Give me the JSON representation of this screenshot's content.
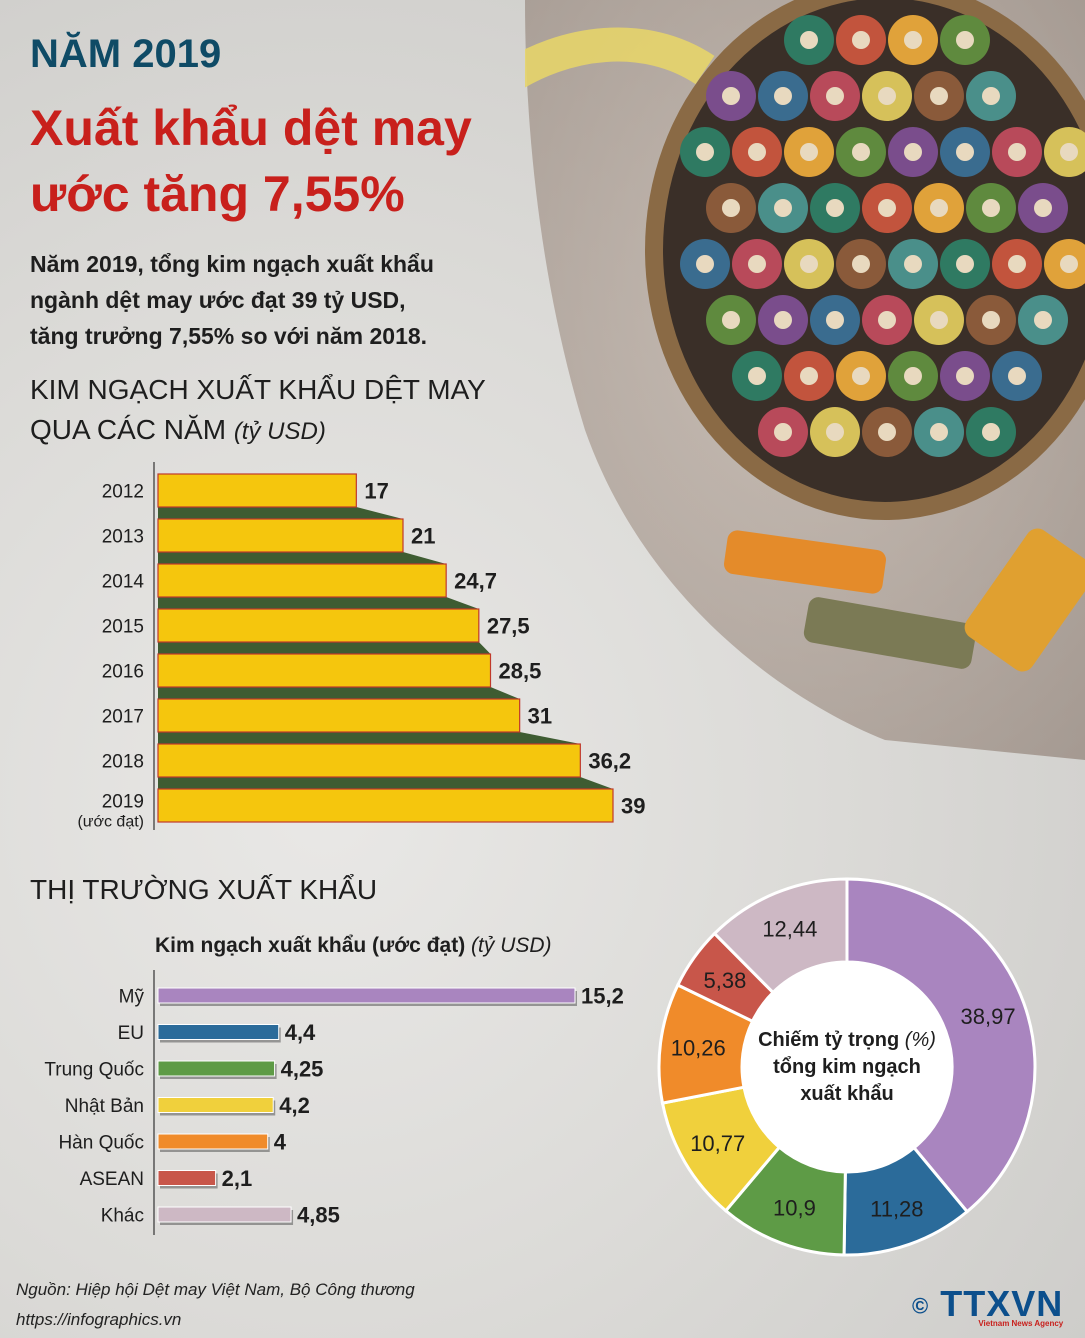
{
  "header": {
    "year_title": "NĂM 2019",
    "title_line1": "Xuất khẩu dệt may",
    "title_line2": "ước tăng 7,55%",
    "intro_line1": "Năm 2019, tổng kim ngạch xuất khẩu",
    "intro_line2": "ngành dệt may ước đạt 39 tỷ USD,",
    "intro_line3": "tăng trưởng 7,55% so với năm 2018."
  },
  "section1": {
    "title_line1": "KIM NGẠCH XUẤT KHẨU DỆT MAY",
    "title_line2": "QUA CÁC NĂM",
    "unit": "(tỷ USD)"
  },
  "section2": {
    "title": "THỊ TRƯỜNG XUẤT KHẨU",
    "subtitle": "Kim ngạch xuất khẩu (ước đạt)",
    "unit": "(tỷ USD)"
  },
  "donut_center": {
    "line1": "Chiếm tỷ trọng",
    "unit": "(%)",
    "line2": "tổng kim ngạch",
    "line3": "xuất khẩu"
  },
  "footer": {
    "source": "Nguồn: Hiệp hội Dệt may Việt Nam, Bộ Công thương",
    "url": "https://infographics.vn",
    "logo": "TTXVN",
    "logo_sub": "Vietnam News Agency",
    "copyright": "©"
  },
  "colors": {
    "title_blue": "#0f4b66",
    "title_red": "#c8201c",
    "bar_yellow": "#f5c60d",
    "bar_shadow": "#3e5c32",
    "bar_border": "#c0392b"
  },
  "chart_data": [
    {
      "type": "bar",
      "orientation": "horizontal",
      "categories": [
        "2012",
        "2013",
        "2014",
        "2015",
        "2016",
        "2017",
        "2018",
        "2019"
      ],
      "category_notes": [
        "",
        "",
        "",
        "",
        "",
        "",
        "",
        "(ước đạt)"
      ],
      "values": [
        17,
        21,
        24.7,
        27.5,
        28.5,
        31,
        36.2,
        39
      ],
      "value_labels": [
        "17",
        "21",
        "24,7",
        "27,5",
        "28,5",
        "31",
        "36,2",
        "39"
      ],
      "xlim": [
        0,
        39
      ]
    },
    {
      "type": "bar",
      "orientation": "horizontal",
      "categories": [
        "Mỹ",
        "EU",
        "Trung Quốc",
        "Nhật Bản",
        "Hàn Quốc",
        "ASEAN",
        "Khác"
      ],
      "values": [
        15.2,
        4.4,
        4.25,
        4.2,
        4,
        2.1,
        4.85
      ],
      "value_labels": [
        "15,2",
        "4,4",
        "4,25",
        "4,2",
        "4",
        "2,1",
        "4,85"
      ],
      "colors": [
        "#a985bf",
        "#2b6b9a",
        "#5e9b46",
        "#f0d03c",
        "#f08b2a",
        "#c8564a",
        "#cdb8c4"
      ],
      "xlim": [
        0,
        15.2
      ]
    },
    {
      "type": "pie",
      "donut": true,
      "values": [
        38.97,
        11.28,
        10.9,
        10.77,
        10.26,
        5.38,
        12.44
      ],
      "value_labels": [
        "38,97",
        "11,28",
        "10,9",
        "10,77",
        "10,26",
        "5,38",
        "12,44"
      ],
      "colors": [
        "#a985bf",
        "#2b6b9a",
        "#5e9b46",
        "#f0d03c",
        "#f08b2a",
        "#c8564a",
        "#cdb8c4"
      ]
    }
  ]
}
